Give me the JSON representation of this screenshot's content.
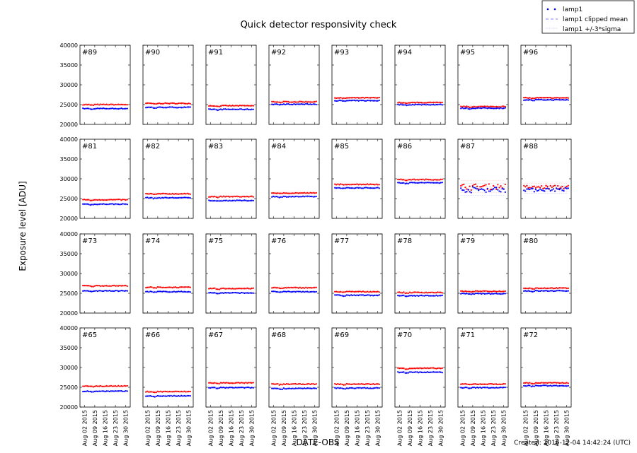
{
  "chart_data": {
    "type": "scatter",
    "title": "Quick detector responsivity check",
    "xlabel": "DATE-OBS",
    "ylabel": "Exposure level [ADU]",
    "ylim": [
      20000,
      40000
    ],
    "yticks": [
      "20000",
      "25000",
      "30000",
      "35000",
      "40000"
    ],
    "xlim": [
      "2015-07-30",
      "2015-09-02"
    ],
    "xticks": [
      {
        "date": "2015-08-02",
        "label": "Aug 02 2015"
      },
      {
        "date": "2015-08-09",
        "label": "Aug 09 2015"
      },
      {
        "date": "2015-08-16",
        "label": "Aug 16 2015"
      },
      {
        "date": "2015-08-23",
        "label": "Aug 23 2015"
      },
      {
        "date": "2015-08-30",
        "label": "Aug 30 2015"
      }
    ],
    "grid": false,
    "legend": {
      "placement": "top-right",
      "entries": [
        "lamp1",
        "lamp1 clipped mean",
        "lamp1 +/-3*sigma"
      ]
    },
    "colors": {
      "lamp1": "#0000ff",
      "second_series": "#ff0000",
      "clipped_mean": "#8080ff",
      "sigma": "#c0c0ff"
    },
    "date_range": [
      "2015-08-01",
      "2015-08-31"
    ],
    "panels": [
      {
        "label": "#89",
        "lamp1": 24000,
        "red": 25000,
        "scatter": 100
      },
      {
        "label": "#90",
        "lamp1": 24300,
        "red": 25300,
        "scatter": 100
      },
      {
        "label": "#91",
        "lamp1": 23800,
        "red": 24700,
        "scatter": 100
      },
      {
        "label": "#92",
        "lamp1": 25100,
        "red": 25700,
        "scatter": 100
      },
      {
        "label": "#93",
        "lamp1": 26000,
        "red": 26700,
        "scatter": 100
      },
      {
        "label": "#94",
        "lamp1": 25000,
        "red": 25500,
        "scatter": 100
      },
      {
        "label": "#95",
        "lamp1": 24100,
        "red": 24500,
        "scatter": 100
      },
      {
        "label": "#96",
        "lamp1": 26200,
        "red": 26700,
        "scatter": 100
      },
      {
        "label": "#81",
        "lamp1": 23600,
        "red": 24700,
        "scatter": 100
      },
      {
        "label": "#82",
        "lamp1": 25200,
        "red": 26200,
        "scatter": 100
      },
      {
        "label": "#83",
        "lamp1": 24500,
        "red": 25500,
        "scatter": 100
      },
      {
        "label": "#84",
        "lamp1": 25500,
        "red": 26400,
        "scatter": 100
      },
      {
        "label": "#85",
        "lamp1": 27700,
        "red": 28600,
        "scatter": 100
      },
      {
        "label": "#86",
        "lamp1": 29000,
        "red": 29800,
        "scatter": 100
      },
      {
        "label": "#87",
        "lamp1": 27300,
        "red": 28000,
        "scatter": 700
      },
      {
        "label": "#88",
        "lamp1": 27300,
        "red": 27900,
        "scatter": 450
      },
      {
        "label": "#73",
        "lamp1": 25600,
        "red": 26900,
        "scatter": 100
      },
      {
        "label": "#74",
        "lamp1": 25400,
        "red": 26500,
        "scatter": 100
      },
      {
        "label": "#75",
        "lamp1": 25100,
        "red": 26200,
        "scatter": 100
      },
      {
        "label": "#76",
        "lamp1": 25400,
        "red": 26400,
        "scatter": 100
      },
      {
        "label": "#77",
        "lamp1": 24500,
        "red": 25400,
        "scatter": 100
      },
      {
        "label": "#78",
        "lamp1": 24400,
        "red": 25200,
        "scatter": 100
      },
      {
        "label": "#79",
        "lamp1": 24900,
        "red": 25500,
        "scatter": 100
      },
      {
        "label": "#80",
        "lamp1": 25600,
        "red": 26300,
        "scatter": 100
      },
      {
        "label": "#65",
        "lamp1": 24000,
        "red": 25300,
        "scatter": 100
      },
      {
        "label": "#66",
        "lamp1": 22800,
        "red": 23900,
        "scatter": 100
      },
      {
        "label": "#67",
        "lamp1": 24900,
        "red": 26100,
        "scatter": 100
      },
      {
        "label": "#68",
        "lamp1": 24700,
        "red": 25800,
        "scatter": 100
      },
      {
        "label": "#69",
        "lamp1": 24800,
        "red": 25800,
        "scatter": 100
      },
      {
        "label": "#70",
        "lamp1": 28800,
        "red": 29800,
        "scatter": 100
      },
      {
        "label": "#71",
        "lamp1": 24900,
        "red": 25800,
        "scatter": 100
      },
      {
        "label": "#72",
        "lamp1": 25400,
        "red": 26100,
        "scatter": 100
      }
    ]
  },
  "footer": {
    "created": "Created: 2016-12-04 14:42:24 (UTC)"
  }
}
